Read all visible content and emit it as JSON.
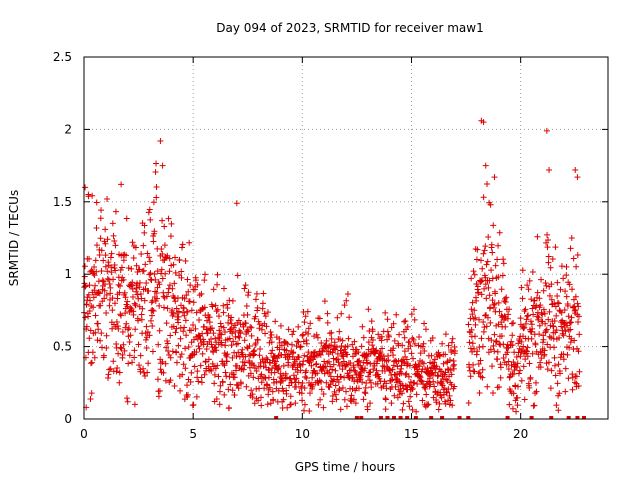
{
  "chart_data": {
    "type": "scatter",
    "title": "Day 094 of 2023, SRMTID for receiver maw1",
    "xlabel": "GPS time / hours",
    "ylabel": "SRMTID / TECUs",
    "xlim": [
      0,
      24
    ],
    "ylim": [
      0,
      2.5
    ],
    "xticks": [
      0,
      5,
      10,
      15,
      20
    ],
    "yticks": [
      0,
      0.5,
      1,
      1.5,
      2,
      2.5
    ],
    "ytick_labels": [
      "0",
      "0.5",
      "1",
      "1.5",
      "2",
      "2.5"
    ],
    "grid": true,
    "marker": "+",
    "series_color": "#dd0000",
    "profile": [
      [
        0.0,
        0.8
      ],
      [
        1.0,
        0.85
      ],
      [
        2.0,
        0.75
      ],
      [
        3.0,
        0.85
      ],
      [
        3.5,
        1.0
      ],
      [
        4.0,
        0.8
      ],
      [
        5.0,
        0.6
      ],
      [
        6.0,
        0.55
      ],
      [
        7.0,
        0.5
      ],
      [
        8.0,
        0.45
      ],
      [
        9.0,
        0.35
      ],
      [
        10.0,
        0.4
      ],
      [
        11.0,
        0.4
      ],
      [
        12.0,
        0.42
      ],
      [
        12.5,
        0.3
      ],
      [
        13.0,
        0.35
      ],
      [
        14.0,
        0.35
      ],
      [
        15.0,
        0.35
      ],
      [
        16.0,
        0.28
      ],
      [
        17.0,
        0.3
      ],
      [
        18.0,
        0.7
      ],
      [
        18.5,
        0.9
      ],
      [
        19.0,
        0.8
      ],
      [
        19.5,
        0.5
      ],
      [
        19.8,
        0.15
      ],
      [
        20.0,
        0.5
      ],
      [
        21.0,
        0.7
      ],
      [
        22.0,
        0.6
      ],
      [
        22.7,
        0.7
      ]
    ],
    "outliers": [
      [
        0.05,
        1.6
      ],
      [
        0.1,
        0.08
      ],
      [
        0.2,
        1.55
      ],
      [
        1.7,
        1.62
      ],
      [
        3.5,
        1.92
      ],
      [
        3.6,
        1.75
      ],
      [
        7.0,
        1.49
      ],
      [
        18.2,
        2.06
      ],
      [
        18.3,
        2.05
      ],
      [
        18.4,
        1.75
      ],
      [
        21.2,
        1.99
      ],
      [
        21.3,
        1.72
      ],
      [
        22.5,
        1.72
      ],
      [
        22.6,
        1.67
      ],
      [
        18.8,
        1.67
      ]
    ],
    "zero_points": [
      8.8,
      12.5,
      12.7,
      13.6,
      13.9,
      14.2,
      14.5,
      14.8,
      15.2,
      15.9,
      16.4,
      17.2,
      17.6,
      19.4,
      20.5,
      21.4,
      22.2,
      22.6,
      22.9
    ],
    "gaps": [
      [
        17.0,
        17.6
      ]
    ]
  }
}
